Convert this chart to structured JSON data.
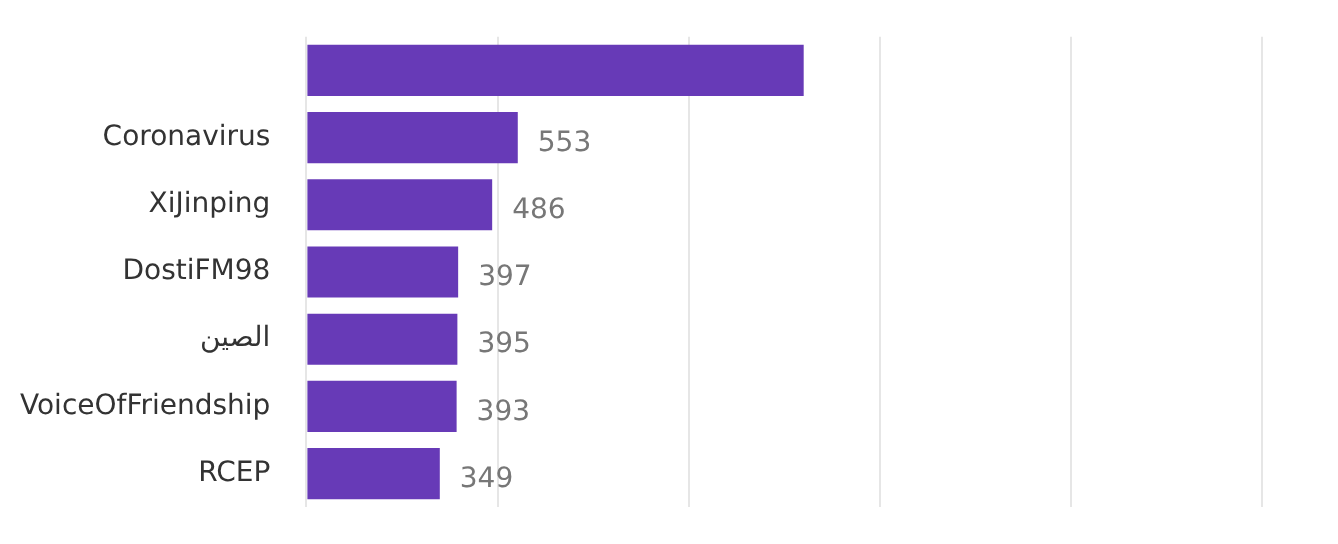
{
  "chart_data": {
    "type": "bar",
    "orientation": "horizontal",
    "categories": [
      null,
      "Coronavirus",
      "XiJinping",
      "DostiFM98",
      "الصين",
      "VoiceOfFriendship",
      "RCEP"
    ],
    "values": [
      1301,
      553,
      486,
      397,
      395,
      393,
      349
    ],
    "value_labels": [
      null,
      "553",
      "486",
      "397",
      "395",
      "393",
      "349"
    ],
    "color": "#673ab7",
    "xlim": [
      0,
      2500
    ],
    "xticks": [
      {
        "value": 0,
        "label": null
      },
      {
        "value": 500,
        "label": null
      },
      {
        "value": 1000,
        "label": null
      },
      {
        "value": 1500,
        "label": null
      },
      {
        "value": 2000,
        "label": null
      },
      {
        "value": 2500,
        "label": null
      }
    ],
    "grid": "x",
    "tick_labels": "y",
    "legend": false
  }
}
